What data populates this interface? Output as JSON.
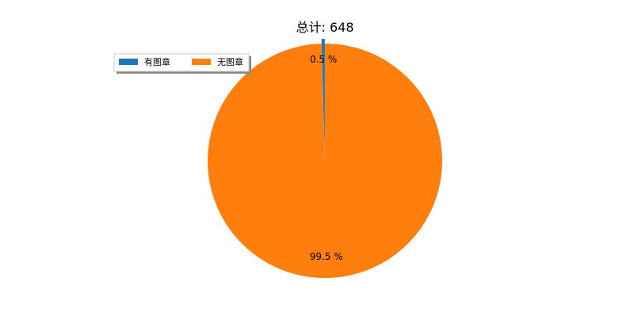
{
  "chart_data": {
    "type": "pie",
    "title": "总计: 648",
    "slices": [
      {
        "label": "有图章",
        "value": 3,
        "percent_label": "0.5 %",
        "color": "#1f77b4",
        "explode": true
      },
      {
        "label": "无图章",
        "value": 645,
        "percent_label": "99.5 %",
        "color": "#ff7f0e",
        "explode": false
      }
    ],
    "legend": {
      "placement": "top-left",
      "entries": [
        "有图章",
        "无图章"
      ]
    },
    "start_angle_deg": 90,
    "direction": "counterclockwise"
  }
}
